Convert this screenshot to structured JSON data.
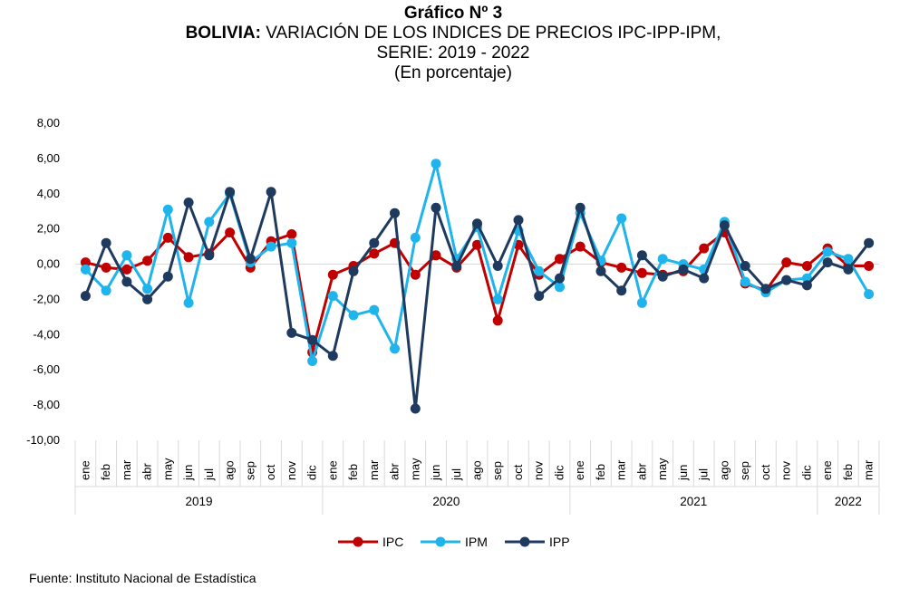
{
  "title_line1": "Gráfico Nº 3",
  "title_line2_strong": "BOLIVIA:",
  "title_line2_rest": "VARIACIÓN DE LOS INDICES DE PRECIOS IPC-IPP-IPM,",
  "title_line3": "SERIE: 2019 - 2022",
  "title_line4": "(En porcentaje)",
  "source": "Fuente: Instituto Nacional de Estadística",
  "chart_data": {
    "type": "line",
    "ylim": [
      -10,
      8
    ],
    "yticks": [
      "8,00",
      "6,00",
      "4,00",
      "2,00",
      "0,00",
      "-2,00",
      "-4,00",
      "-6,00",
      "-8,00",
      "-10,00"
    ],
    "grid": false,
    "legend_position": "bottom",
    "months": [
      "ene",
      "feb",
      "mar",
      "abr",
      "may",
      "jun",
      "jul",
      "ago",
      "sep",
      "oct",
      "nov",
      "dic",
      "ene",
      "feb",
      "mar",
      "abr",
      "may",
      "jun",
      "jul",
      "ago",
      "sep",
      "oct",
      "nov",
      "dic",
      "ene",
      "feb",
      "mar",
      "abr",
      "may",
      "jun",
      "jul",
      "ago",
      "sep",
      "oct",
      "nov",
      "dic",
      "ene",
      "feb",
      "mar"
    ],
    "years": [
      {
        "label": "2019",
        "start": 0,
        "count": 12
      },
      {
        "label": "2020",
        "start": 12,
        "count": 12
      },
      {
        "label": "2021",
        "start": 24,
        "count": 12
      },
      {
        "label": "2022",
        "start": 36,
        "count": 3
      }
    ],
    "series": [
      {
        "name": "IPC",
        "color": "#c00000",
        "values": [
          0.1,
          -0.2,
          -0.3,
          0.2,
          1.5,
          0.4,
          0.6,
          1.8,
          -0.2,
          1.3,
          1.7,
          -5.0,
          -0.6,
          -0.1,
          0.6,
          1.2,
          -0.6,
          0.5,
          -0.2,
          1.1,
          -3.2,
          1.1,
          -0.6,
          0.3,
          1.0,
          0.1,
          -0.2,
          -0.5,
          -0.6,
          -0.4,
          0.9,
          1.8,
          -1.1,
          -1.5,
          0.1,
          -0.1,
          0.9,
          -0.1,
          -0.1
        ]
      },
      {
        "name": "IPM",
        "color": "#1fb4ec",
        "values": [
          -0.3,
          -1.5,
          0.5,
          -1.4,
          3.1,
          -2.2,
          2.4,
          4.0,
          0.1,
          1.0,
          1.2,
          -5.5,
          -1.8,
          -2.9,
          -2.6,
          -4.8,
          1.5,
          5.7,
          0.3,
          2.1,
          -2.0,
          1.9,
          -0.4,
          -1.3,
          2.9,
          0.2,
          2.6,
          -2.2,
          0.3,
          0.0,
          -0.3,
          2.4,
          -1.0,
          -1.6,
          -0.9,
          -0.8,
          0.7,
          0.3,
          -1.7
        ]
      },
      {
        "name": "IPP",
        "color": "#1f3a5f",
        "values": [
          -1.8,
          1.2,
          -1.0,
          -2.0,
          -0.7,
          3.5,
          0.5,
          4.1,
          0.3,
          4.1,
          -3.9,
          -4.3,
          -5.2,
          -0.4,
          1.2,
          2.9,
          -8.2,
          3.2,
          -0.1,
          2.3,
          -0.1,
          2.5,
          -1.8,
          -0.8,
          3.2,
          -0.4,
          -1.5,
          0.5,
          -0.7,
          -0.3,
          -0.8,
          2.2,
          -0.1,
          -1.4,
          -0.9,
          -1.2,
          0.1,
          -0.3,
          1.2
        ]
      }
    ]
  }
}
